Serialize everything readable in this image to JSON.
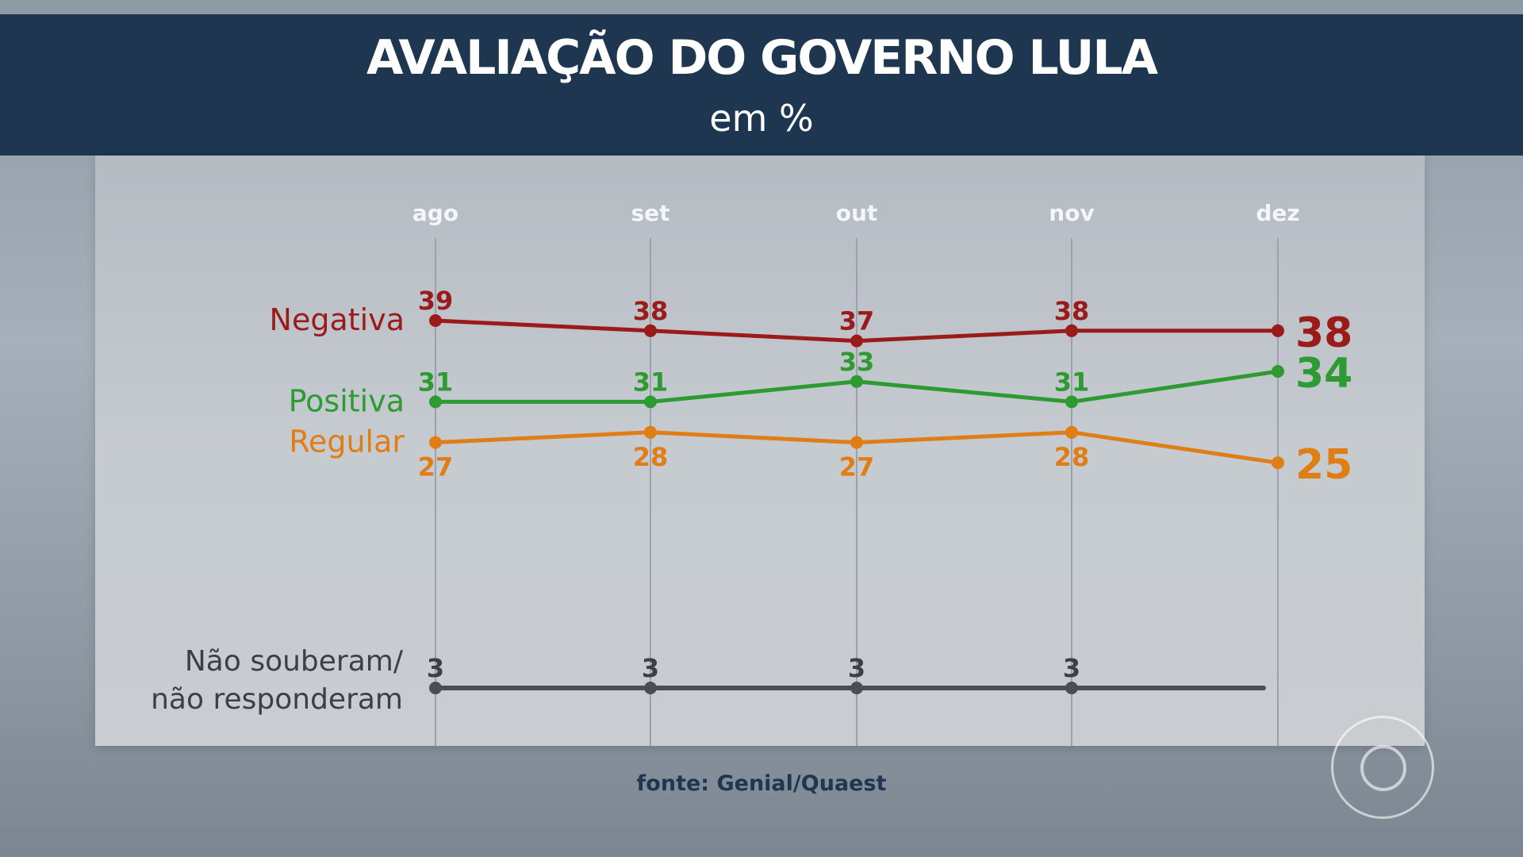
{
  "header": {
    "title": "AVALIAÇÃO DO GOVERNO LULA",
    "subtitle": "em %"
  },
  "source": "fonte: Genial/Quaest",
  "chart_data": {
    "type": "line",
    "title": "AVALIAÇÃO DO GOVERNO LULA",
    "subtitle": "em %",
    "categories": [
      "ago",
      "set",
      "out",
      "nov",
      "dez"
    ],
    "grid": "vertical",
    "series": [
      {
        "name": "Negativa",
        "color": "#9b1b1b",
        "values": [
          39,
          38,
          37,
          38,
          38
        ]
      },
      {
        "name": "Positiva",
        "color": "#2e9a32",
        "values": [
          31,
          31,
          33,
          31,
          34
        ]
      },
      {
        "name": "Regular",
        "color": "#e07d14",
        "values": [
          27,
          28,
          27,
          28,
          25
        ]
      },
      {
        "name": "Não souberam/\nnão responderam",
        "color": "#4a4d52",
        "values": [
          3,
          3,
          3,
          3,
          null
        ]
      }
    ]
  }
}
